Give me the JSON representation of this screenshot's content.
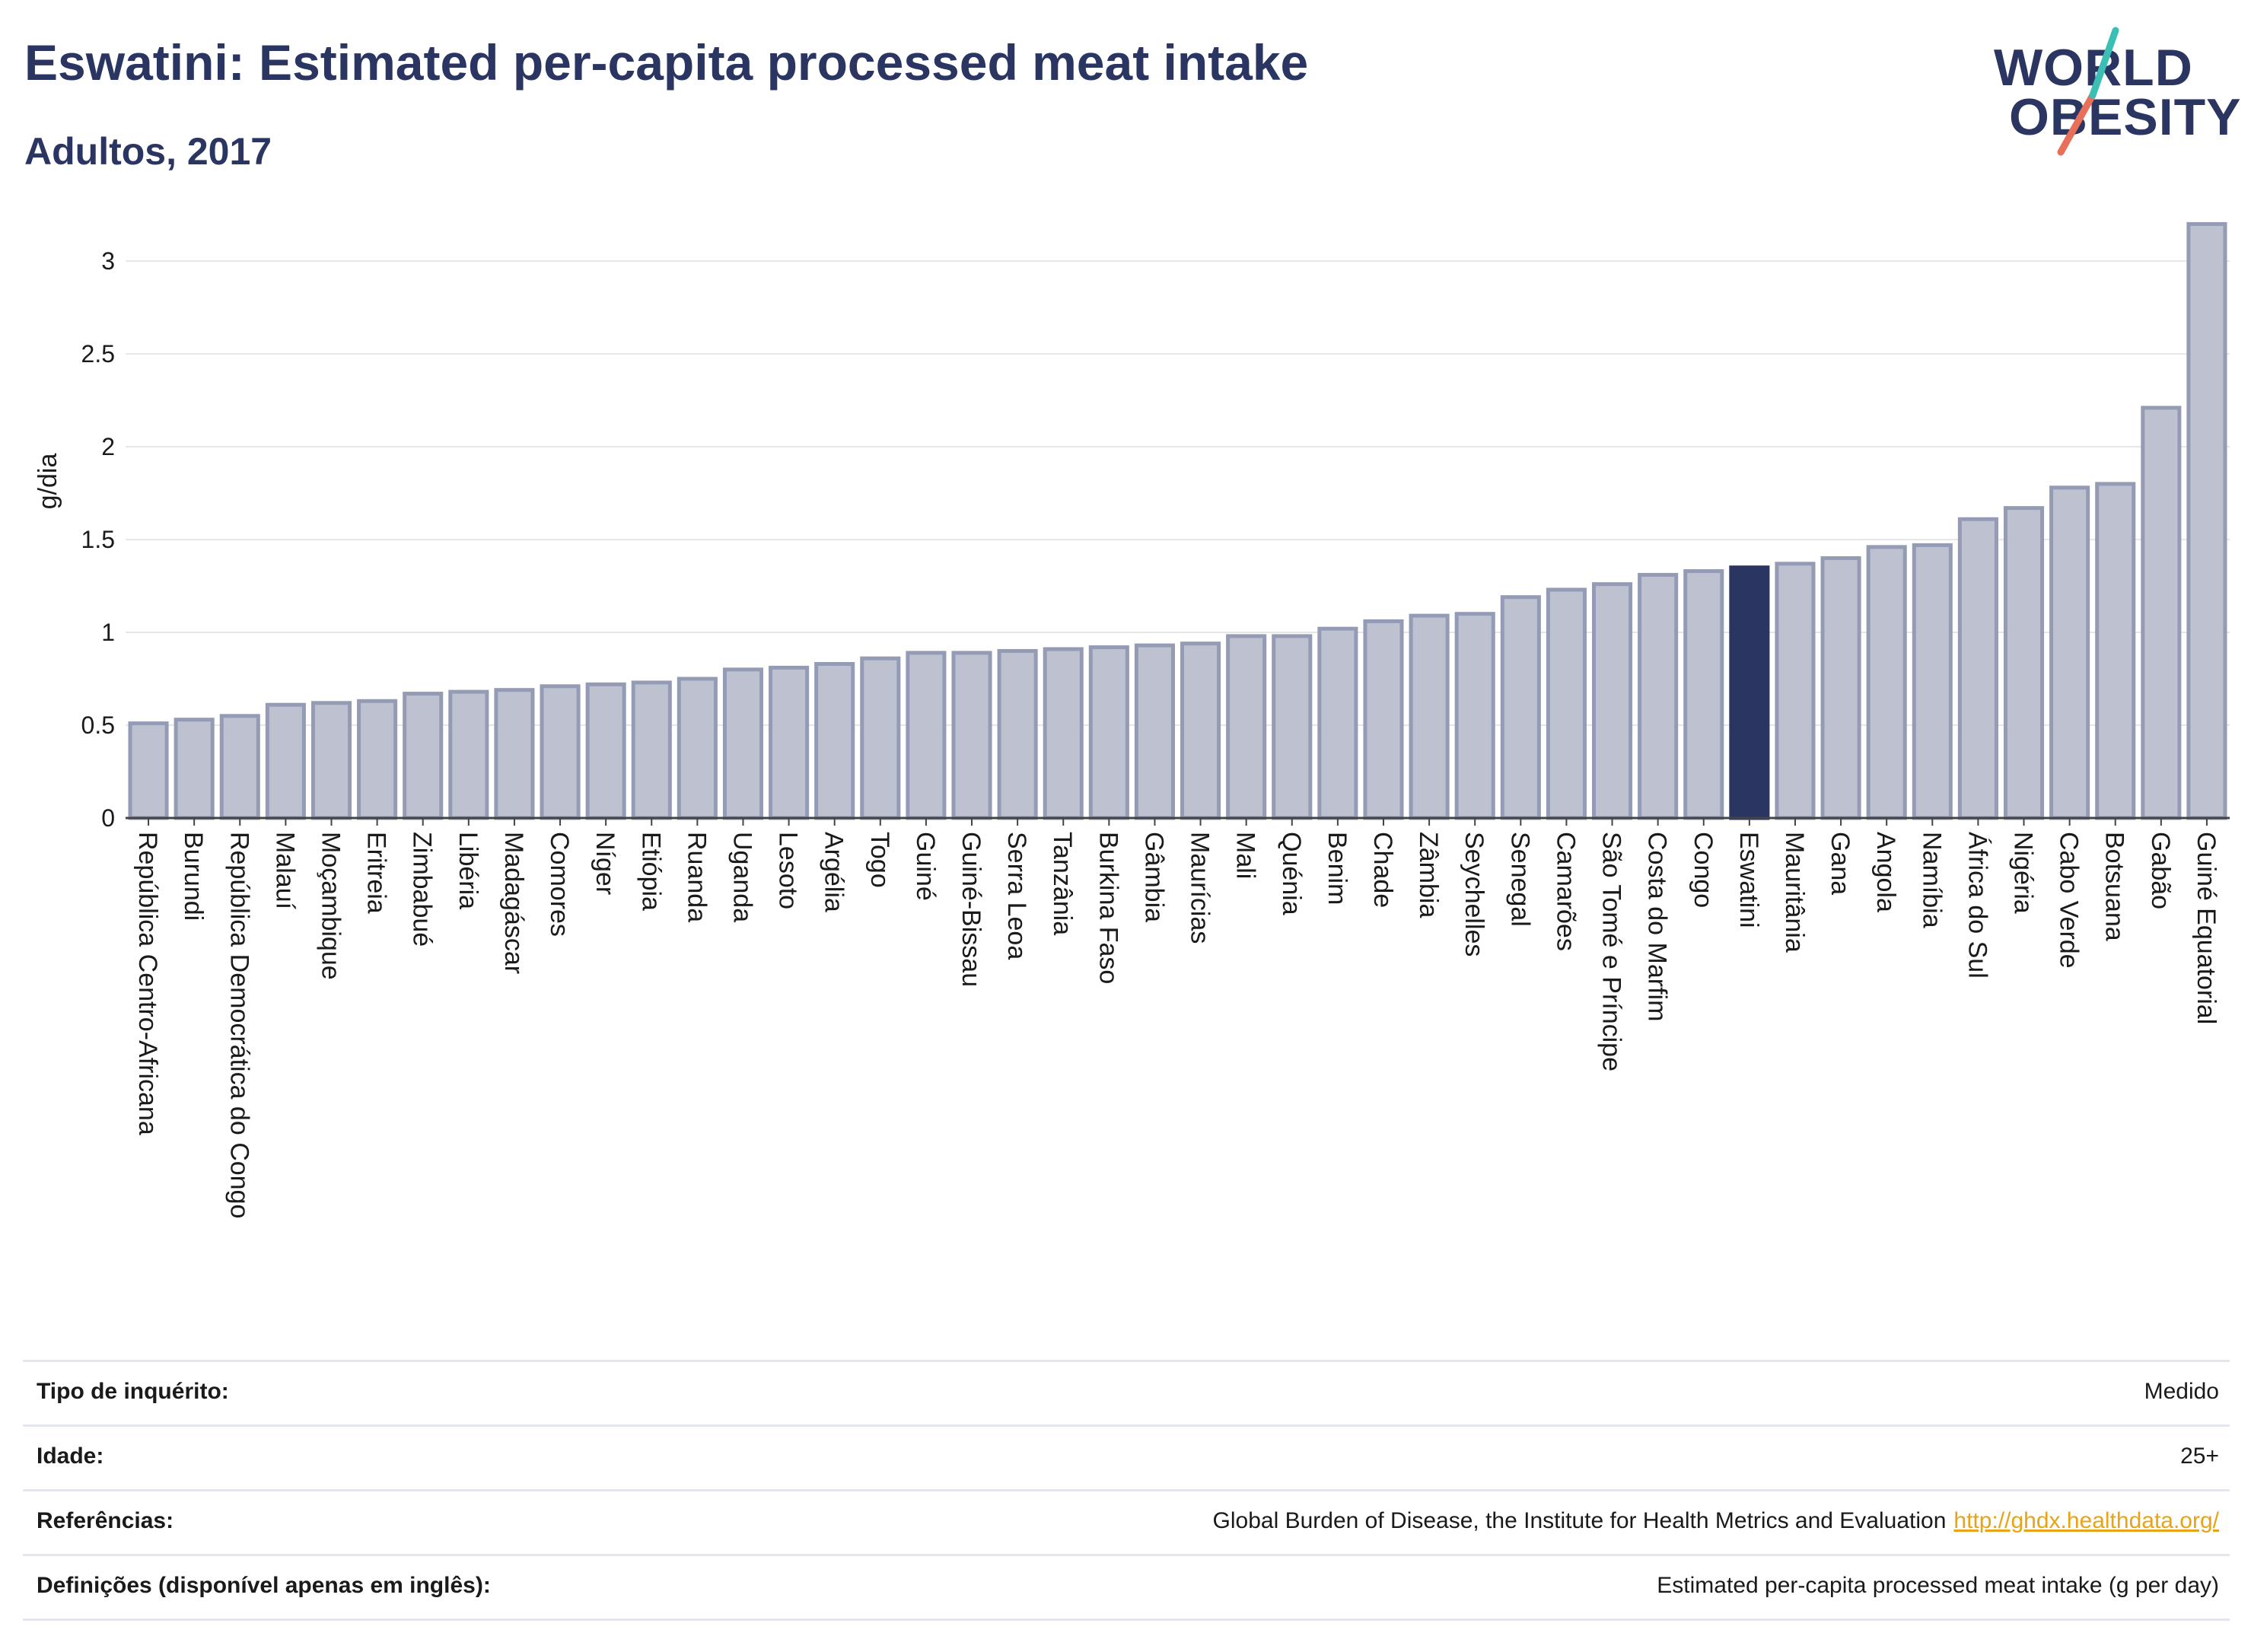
{
  "header": {
    "title": "Eswatini: Estimated per-capita processed meat intake",
    "subtitle": "Adultos, 2017"
  },
  "logo": {
    "line1": "WORLD",
    "line2": "OBESITY"
  },
  "colors": {
    "bar": "#bec2d0",
    "bar_stroke": "#949bb5",
    "highlight": "#2b3561",
    "title": "#2b3561",
    "link": "#e8a317"
  },
  "chart_data": {
    "type": "bar",
    "ylabel": "g/dia",
    "xlabel": "",
    "ylim": [
      0,
      3.3
    ],
    "yticks": [
      0,
      0.5,
      1,
      1.5,
      2,
      2.5,
      3
    ],
    "ytick_labels": [
      "0",
      "0.5",
      "1",
      "1.5",
      "2",
      "2.5",
      "3"
    ],
    "grid": true,
    "highlight": "Eswatini",
    "categories": [
      "República Centro-Africana",
      "Burundi",
      "República Democrática do Congo",
      "Malauí",
      "Moçambique",
      "Eritreia",
      "Zimbabué",
      "Libéria",
      "Madagáscar",
      "Comores",
      "Níger",
      "Etiópia",
      "Ruanda",
      "Uganda",
      "Lesoto",
      "Argélia",
      "Togo",
      "Guiné",
      "Guiné-Bissau",
      "Serra Leoa",
      "Tanzânia",
      "Burkina Faso",
      "Gâmbia",
      "Maurícias",
      "Mali",
      "Quénia",
      "Benim",
      "Chade",
      "Zâmbia",
      "Seychelles",
      "Senegal",
      "Camarões",
      "São Tomé e Príncipe",
      "Costa do Marfim",
      "Congo",
      "Eswatini",
      "Mauritânia",
      "Gana",
      "Angola",
      "Namíbia",
      "África do Sul",
      "Nigéria",
      "Cabo Verde",
      "Botsuana",
      "Gabão",
      "Guiné Equatorial"
    ],
    "values": [
      0.51,
      0.53,
      0.55,
      0.61,
      0.62,
      0.63,
      0.67,
      0.68,
      0.69,
      0.71,
      0.72,
      0.73,
      0.75,
      0.8,
      0.81,
      0.83,
      0.86,
      0.89,
      0.89,
      0.9,
      0.91,
      0.92,
      0.93,
      0.94,
      0.98,
      0.98,
      1.02,
      1.06,
      1.09,
      1.1,
      1.19,
      1.23,
      1.26,
      1.31,
      1.33,
      1.35,
      1.37,
      1.4,
      1.46,
      1.47,
      1.61,
      1.67,
      1.78,
      1.8,
      2.21,
      3.2
    ]
  },
  "info": {
    "survey_label": "Tipo de inquérito:",
    "survey_value": "Medido",
    "age_label": "Idade:",
    "age_value": "25+",
    "ref_label": "Referências:",
    "ref_value": "Global Burden of Disease, the Institute for Health Metrics and Evaluation",
    "ref_link": "http://ghdx.healthdata.org/",
    "def_label": "Definições (disponível apenas em inglês):",
    "def_value": "Estimated per-capita processed meat intake (g per day)"
  }
}
